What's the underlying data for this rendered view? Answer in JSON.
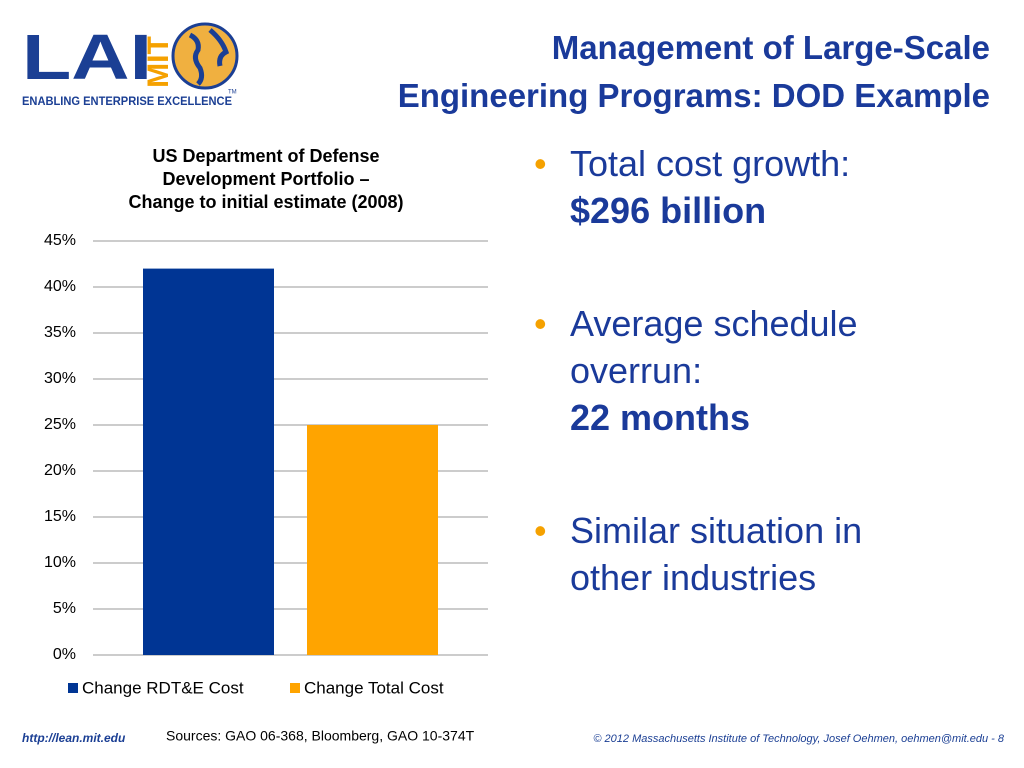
{
  "header": {
    "logo": {
      "letters": "LAI",
      "mit": "MIT",
      "tagline": "ENABLING ENTERPRISE EXCELLENCE",
      "tm": "TM"
    },
    "title": [
      "Management of Large-Scale",
      "Engineering Programs: DOD Example"
    ]
  },
  "chart_data": {
    "type": "bar",
    "title": [
      "US Department of Defense",
      "Development Portfolio –",
      "Change to initial estimate (2008)"
    ],
    "categories": [
      null
    ],
    "series": [
      {
        "name": "Change RDT&E Cost",
        "color": "#003594",
        "values": [
          42
        ]
      },
      {
        "name": "Change Total Cost",
        "color": "#ffa400",
        "values": [
          25
        ]
      }
    ],
    "ylim": [
      0,
      45
    ],
    "yticks": [
      {
        "value": 0,
        "label": "0%"
      },
      {
        "value": 5,
        "label": "5%"
      },
      {
        "value": 10,
        "label": "10%"
      },
      {
        "value": 15,
        "label": "15%"
      },
      {
        "value": 20,
        "label": "20%"
      },
      {
        "value": 25,
        "label": "25%"
      },
      {
        "value": 30,
        "label": "30%"
      },
      {
        "value": 35,
        "label": "35%"
      },
      {
        "value": 40,
        "label": "40%"
      },
      {
        "value": 45,
        "label": "45%"
      }
    ],
    "grid": true,
    "legend": "bottom"
  },
  "bullets": [
    {
      "text": "Total cost growth:",
      "bold": "$296 billion"
    },
    {
      "text": "Average schedule overrun:",
      "bold": "22 months"
    },
    {
      "text": "Similar situation in other industries"
    }
  ],
  "footer": {
    "url": "http://lean.mit.edu",
    "sources": "Sources: GAO 06-368, Bloomberg, GAO 10-374T",
    "copyright": "© 2012 Massachusetts Institute of Technology, Josef Oehmen, oehmen@mit.edu - 8"
  }
}
